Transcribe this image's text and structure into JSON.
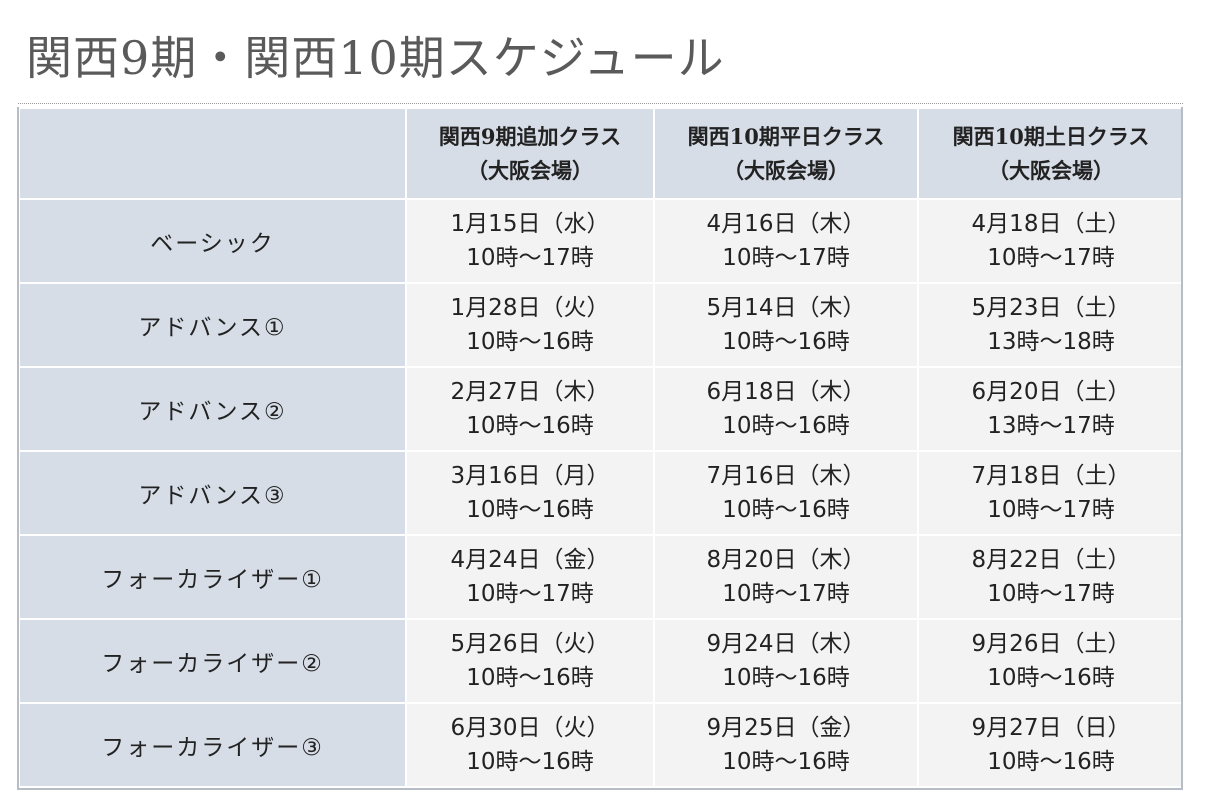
{
  "title": "関西9期・関西10期スケジュール",
  "columns": [
    {
      "line1": "関西9期追加クラス",
      "line2": "（大阪会場）"
    },
    {
      "line1": "関西10期平日クラス",
      "line2": "（大阪会場）"
    },
    {
      "line1": "関西10期土日クラス",
      "line2": "（大阪会場）"
    }
  ],
  "rows": [
    {
      "label": "ベーシック",
      "cells": [
        {
          "date": "1月15日（水）",
          "time": "10時～17時"
        },
        {
          "date": "4月16日（木）",
          "time": "10時～17時"
        },
        {
          "date": "4月18日（土）",
          "time": "10時～17時"
        }
      ]
    },
    {
      "label": "アドバンス①",
      "cells": [
        {
          "date": "1月28日（火）",
          "time": "10時～16時"
        },
        {
          "date": "5月14日（木）",
          "time": "10時～16時"
        },
        {
          "date": "5月23日（土）",
          "time": "13時～18時"
        }
      ]
    },
    {
      "label": "アドバンス②",
      "cells": [
        {
          "date": "2月27日（木）",
          "time": "10時～16時"
        },
        {
          "date": "6月18日（木）",
          "time": "10時～16時"
        },
        {
          "date": "6月20日（土）",
          "time": "13時～17時"
        }
      ]
    },
    {
      "label": "アドバンス③",
      "cells": [
        {
          "date": "3月16日（月）",
          "time": "10時～16時"
        },
        {
          "date": "7月16日（木）",
          "time": "10時～16時"
        },
        {
          "date": "7月18日（土）",
          "time": "10時～17時"
        }
      ]
    },
    {
      "label": "フォーカライザー①",
      "cells": [
        {
          "date": "4月24日（金）",
          "time": "10時～17時"
        },
        {
          "date": "8月20日（木）",
          "time": "10時～17時"
        },
        {
          "date": "8月22日（土）",
          "time": "10時～17時"
        }
      ]
    },
    {
      "label": "フォーカライザー②",
      "cells": [
        {
          "date": "5月26日（火）",
          "time": "10時～16時"
        },
        {
          "date": "9月24日（木）",
          "time": "10時～16時"
        },
        {
          "date": "9月26日（土）",
          "time": "10時～16時"
        }
      ]
    },
    {
      "label": "フォーカライザー③",
      "cells": [
        {
          "date": "6月30日（火）",
          "time": "10時～16時"
        },
        {
          "date": "9月25日（金）",
          "time": "10時～16時"
        },
        {
          "date": "9月27日（日）",
          "time": "10時～16時"
        }
      ]
    }
  ],
  "colors": {
    "header_bg": "#d7dde7",
    "cell_bg": "#f3f3f3",
    "title": "#5a5a5a"
  }
}
